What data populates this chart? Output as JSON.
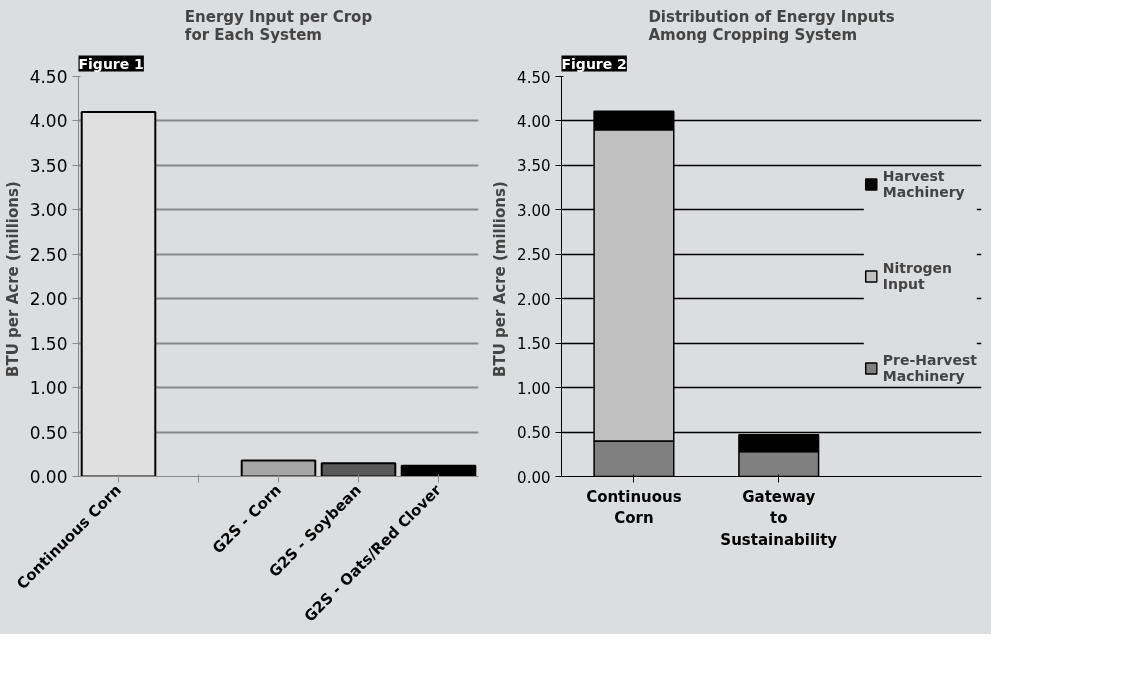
{
  "chart_data": [
    {
      "type": "bar",
      "title": "Energy Input per Crop for Each System",
      "annotations": [
        "Figure 1"
      ],
      "ylabel": "BTU per Acre  (millions)",
      "categories": [
        "Continuous Corn",
        null,
        "G2S - Corn",
        "G2S - Soybean",
        "G2S - Oats/Red Clover"
      ],
      "values": [
        4.1,
        null,
        0.18,
        0.15,
        0.12
      ],
      "colors": [
        "#e0e0e0",
        null,
        "#a6a6a6",
        "#595959",
        "#000000"
      ],
      "ylim": [
        0,
        4.5
      ],
      "yticks": [
        {
          "value": 0,
          "label": "0.00"
        },
        {
          "value": 0.5,
          "label": "0.50"
        },
        {
          "value": 1,
          "label": "1.00"
        },
        {
          "value": 1.5,
          "label": "1.50"
        },
        {
          "value": 2,
          "label": "2.00"
        },
        {
          "value": 2.5,
          "label": "2.50"
        },
        {
          "value": 3,
          "label": "3.00"
        },
        {
          "value": 3.5,
          "label": "3.50"
        },
        {
          "value": 4,
          "label": "4.00"
        },
        {
          "value": 4.5,
          "label": "4.50"
        }
      ],
      "grid": "y",
      "legend": false
    },
    {
      "type": "bar",
      "stacked": true,
      "title": "Distribution of Energy Inputs Among Cropping System",
      "annotations": [
        "Figure 2"
      ],
      "ylabel": "BTU per Acre  (millions)",
      "categories": [
        "Continuous Corn",
        "Gateway to Sustainability"
      ],
      "series": [
        {
          "name": "Pre-Harvest Machinery",
          "color": "#808080",
          "values": [
            0.4,
            0.28
          ]
        },
        {
          "name": "Nitrogen Input",
          "color": "#c0c0c0",
          "values": [
            3.5,
            0
          ]
        },
        {
          "name": "Harvest Machinery",
          "color": "#000000",
          "values": [
            0.21,
            0.19
          ]
        }
      ],
      "ylim": [
        0,
        4.5
      ],
      "yticks": [
        {
          "value": 0,
          "label": "0.00"
        },
        {
          "value": 0.5,
          "label": "0.50"
        },
        {
          "value": 1,
          "label": "1.00"
        },
        {
          "value": 1.5,
          "label": "1.50"
        },
        {
          "value": 2,
          "label": "2.00"
        },
        {
          "value": 2.5,
          "label": "2.50"
        },
        {
          "value": 3,
          "label": "3.00"
        },
        {
          "value": 3.5,
          "label": "3.50"
        },
        {
          "value": 4,
          "label": "4.00"
        },
        {
          "value": 4.5,
          "label": "4.50"
        }
      ],
      "grid": "y",
      "legend": "right"
    }
  ]
}
